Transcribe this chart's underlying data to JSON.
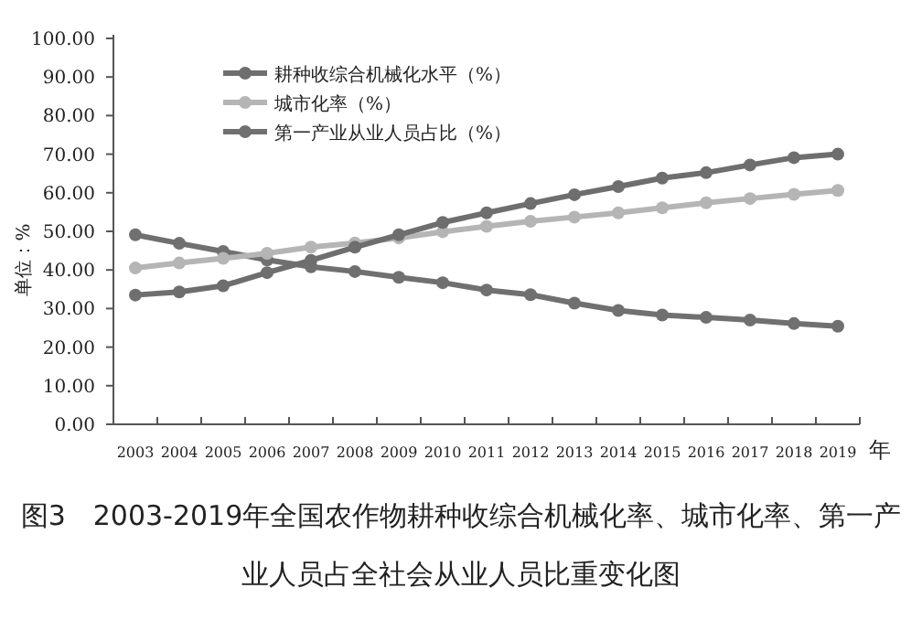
{
  "chart_data": {
    "type": "line",
    "title": "图3　2003-2019年全国农作物耕种收综合机械化率、城市化率、第一产业人员占全社会从业人员比重变化图",
    "ylabel": "单位：%",
    "xlabel": "年",
    "categories": [
      "2003",
      "2004",
      "2005",
      "2006",
      "2007",
      "2008",
      "2009",
      "2010",
      "2011",
      "2012",
      "2013",
      "2014",
      "2015",
      "2016",
      "2017",
      "2018",
      "2019"
    ],
    "series": [
      {
        "name": "耕种收综合机械化水平（%）",
        "color": "#6e6e6e",
        "values": [
          33.5,
          34.3,
          35.9,
          39.3,
          42.5,
          45.9,
          49.1,
          52.3,
          54.8,
          57.2,
          59.5,
          61.6,
          63.8,
          65.2,
          67.2,
          69.1,
          70.0
        ]
      },
      {
        "name": "城市化率（%）",
        "color": "#b5b5b5",
        "values": [
          40.5,
          41.8,
          43.0,
          44.3,
          45.9,
          47.0,
          48.3,
          49.9,
          51.3,
          52.6,
          53.7,
          54.8,
          56.1,
          57.4,
          58.5,
          59.6,
          60.6
        ]
      },
      {
        "name": "第一产业从业人员占比（%）",
        "color": "#707070",
        "values": [
          49.1,
          46.9,
          44.8,
          42.6,
          40.8,
          39.6,
          38.1,
          36.7,
          34.8,
          33.6,
          31.4,
          29.5,
          28.3,
          27.7,
          27.0,
          26.1,
          25.4
        ]
      }
    ],
    "ylim": [
      0,
      100
    ],
    "yticks": [
      {
        "value": 0,
        "label": "0.00"
      },
      {
        "value": 10,
        "label": "10.00"
      },
      {
        "value": 20,
        "label": "20.00"
      },
      {
        "value": 30,
        "label": "30.00"
      },
      {
        "value": 40,
        "label": "40.00"
      },
      {
        "value": 50,
        "label": "50.00"
      },
      {
        "value": 60,
        "label": "60.00"
      },
      {
        "value": 70,
        "label": "70.00"
      },
      {
        "value": 80,
        "label": "80.00"
      },
      {
        "value": 90,
        "label": "90.00"
      },
      {
        "value": 100,
        "label": "100.00"
      }
    ],
    "grid": false,
    "legend": "top left",
    "marker": "circle",
    "line_style": "solid"
  }
}
